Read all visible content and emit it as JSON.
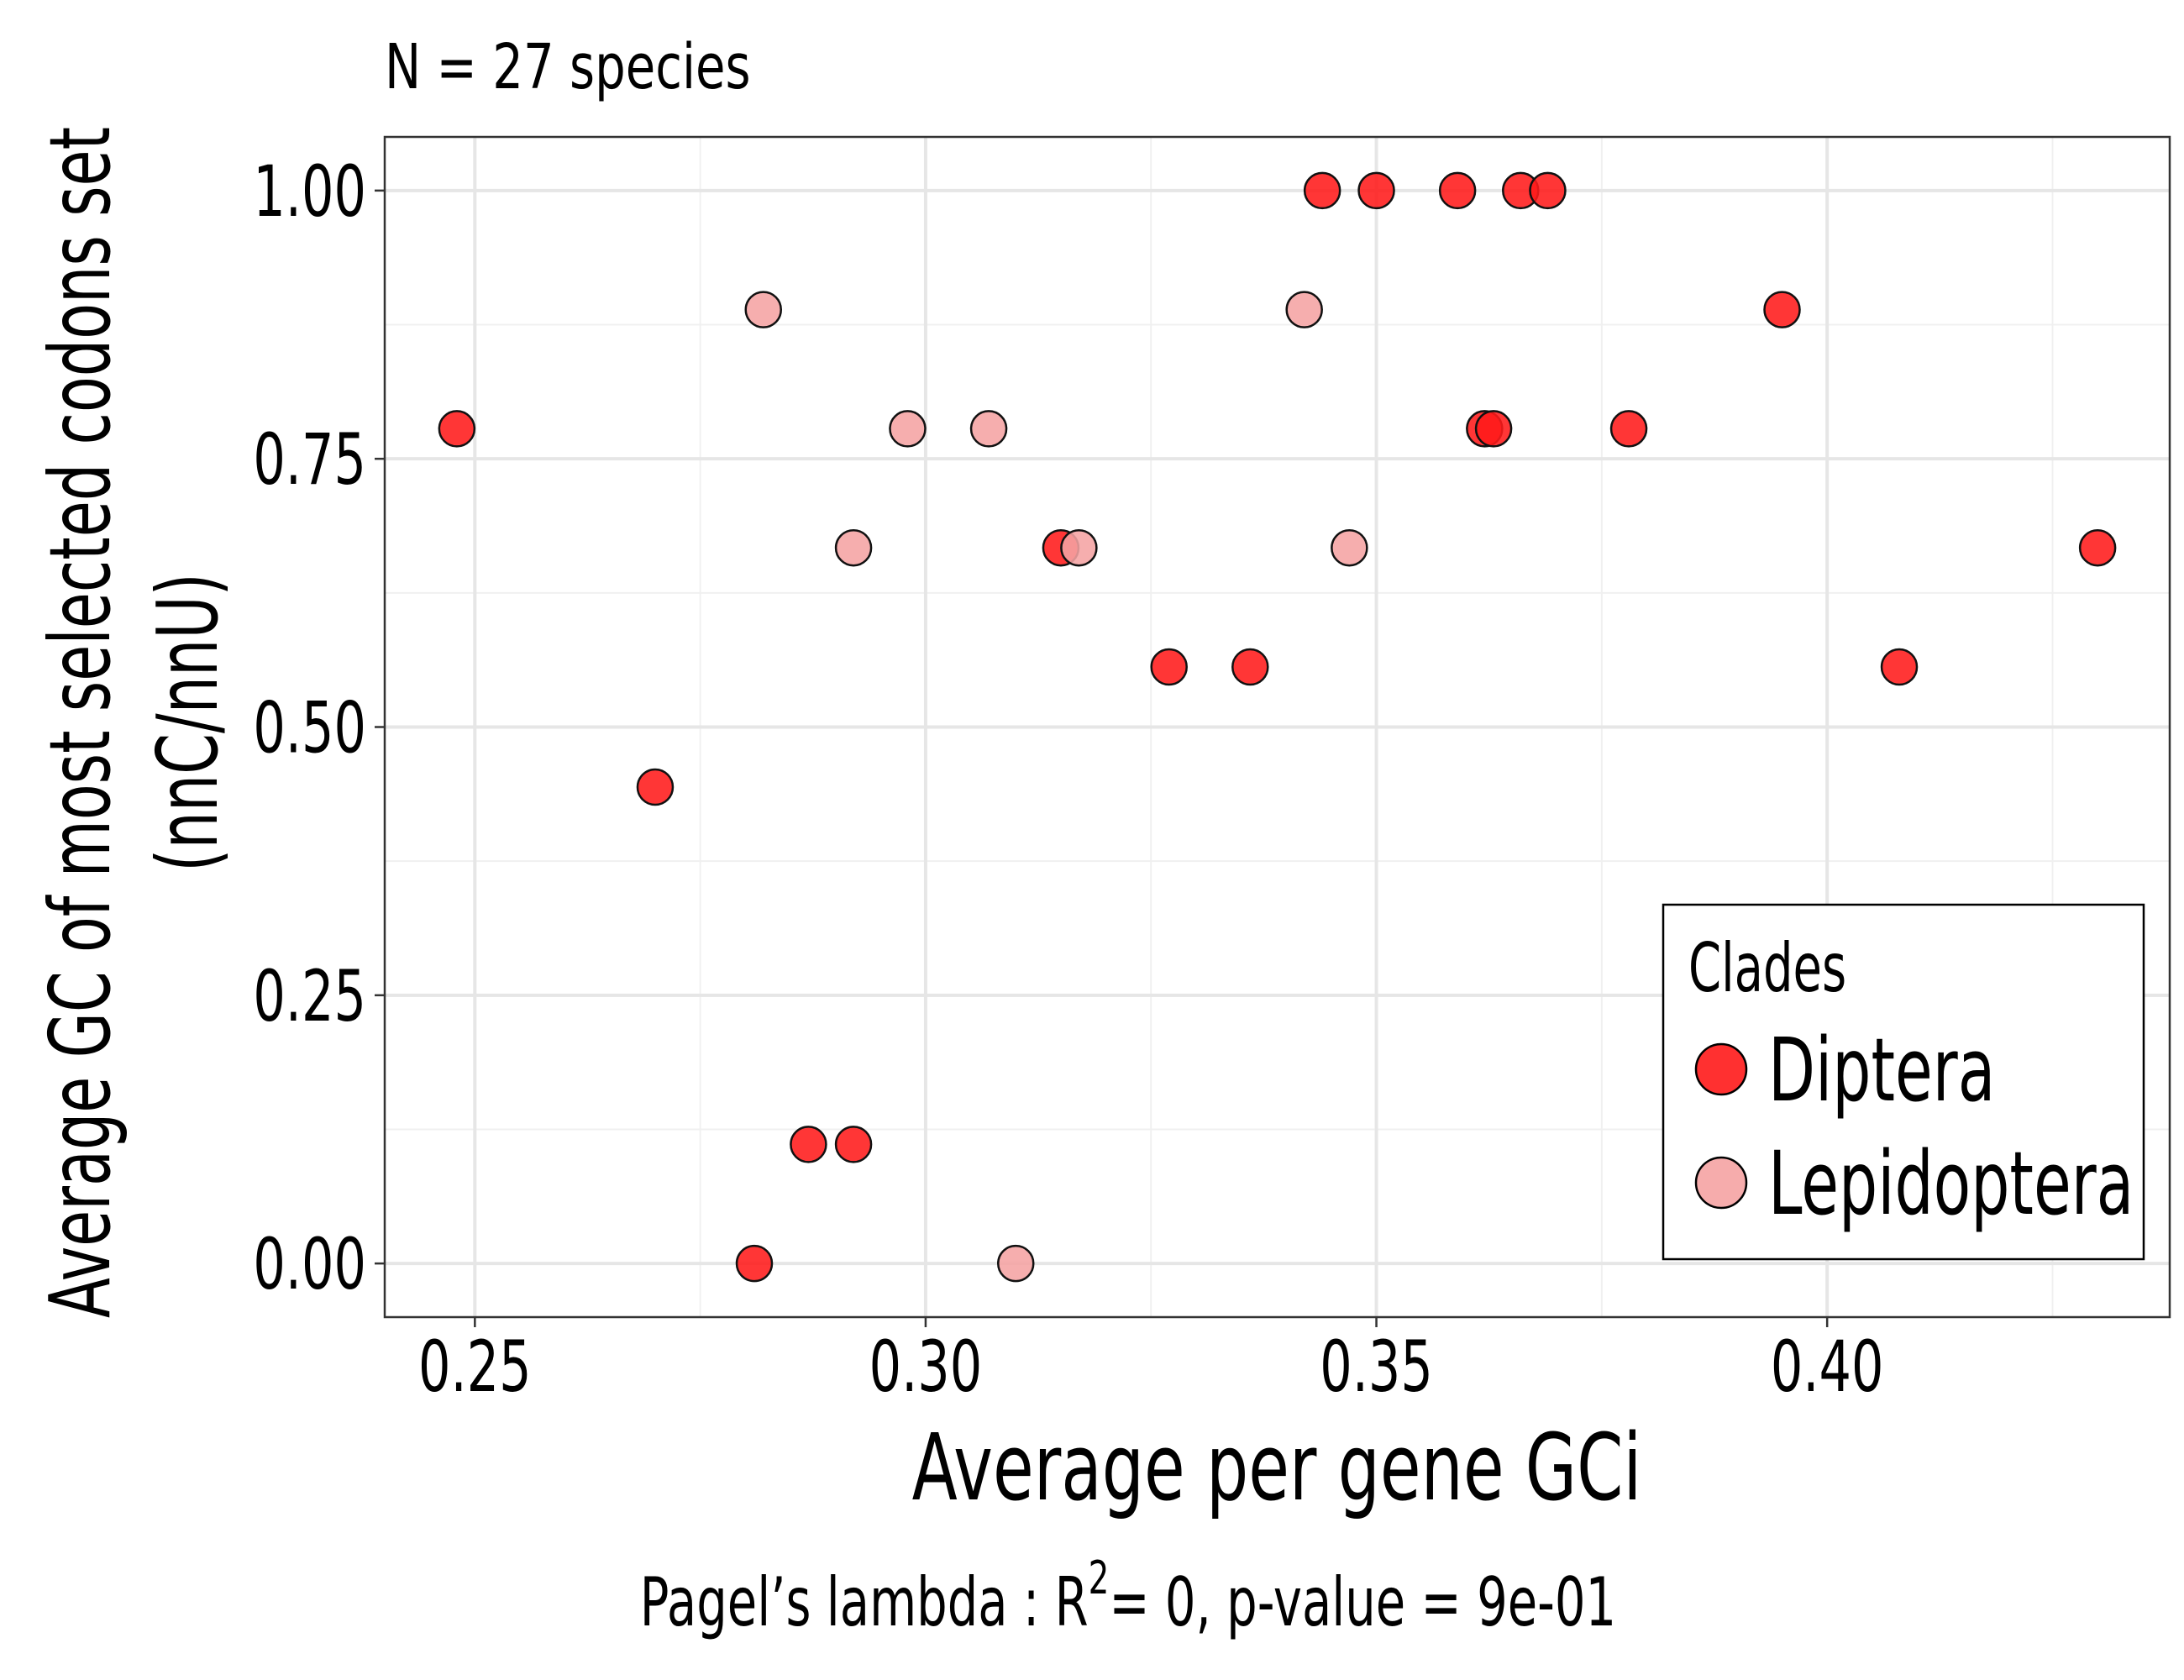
{
  "chart_data": {
    "type": "scatter",
    "title": "N = 27 species",
    "xlabel": "Average per gene GCi",
    "ylabel_line1": "Average GC of most selected codons set",
    "ylabel_line2": "(nnC/nnU)",
    "caption_prefix": "Pagel’s lambda : R",
    "caption_sup": "2",
    "caption_suffix": "= 0, p-value = 9e-01",
    "xlim": [
      0.24,
      0.438
    ],
    "ylim": [
      -0.05,
      1.05
    ],
    "xticks": [
      0.25,
      0.3,
      0.35,
      0.4
    ],
    "xtick_labels": [
      "0.25",
      "0.30",
      "0.35",
      "0.40"
    ],
    "yticks": [
      0.0,
      0.25,
      0.5,
      0.75,
      1.0
    ],
    "ytick_labels": [
      "0.00",
      "0.25",
      "0.50",
      "0.75",
      "1.00"
    ],
    "grid": true,
    "legend": {
      "title": "Clades",
      "placement": "bottom-right",
      "entries": [
        "Diptera",
        "Lepidoptera"
      ]
    },
    "series": [
      {
        "name": "Diptera",
        "color": "#ff1a1a",
        "points": [
          [
            0.248,
            0.778
          ],
          [
            0.27,
            0.444
          ],
          [
            0.281,
            0.0
          ],
          [
            0.287,
            0.111
          ],
          [
            0.292,
            0.111
          ],
          [
            0.315,
            0.667
          ],
          [
            0.327,
            0.556
          ],
          [
            0.336,
            0.556
          ],
          [
            0.344,
            1.0
          ],
          [
            0.35,
            1.0
          ],
          [
            0.359,
            1.0
          ],
          [
            0.362,
            0.778
          ],
          [
            0.363,
            0.778
          ],
          [
            0.366,
            1.0
          ],
          [
            0.369,
            1.0
          ],
          [
            0.378,
            0.778
          ],
          [
            0.395,
            0.889
          ],
          [
            0.408,
            0.556
          ],
          [
            0.43,
            0.667
          ]
        ]
      },
      {
        "name": "Lepidoptera",
        "color": "#f5a3a3",
        "points": [
          [
            0.282,
            0.889
          ],
          [
            0.292,
            0.667
          ],
          [
            0.298,
            0.778
          ],
          [
            0.307,
            0.778
          ],
          [
            0.31,
            0.0
          ],
          [
            0.317,
            0.667
          ],
          [
            0.342,
            0.889
          ],
          [
            0.347,
            0.667
          ]
        ]
      }
    ]
  }
}
